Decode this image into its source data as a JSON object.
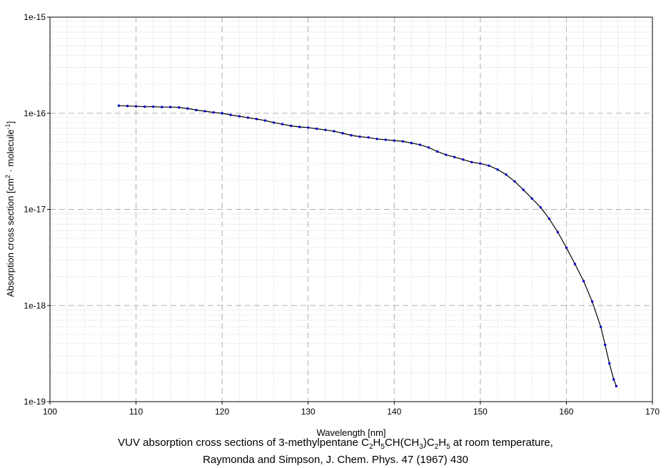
{
  "chart_data": {
    "type": "line",
    "title": "",
    "xlabel": "Wavelength [nm]",
    "ylabel": {
      "prefix": "Absorption cross section [cm",
      "sup1": "2",
      "middle": " · molecule",
      "sup2": "-1",
      "suffix": "]"
    },
    "x_scale": "linear",
    "y_scale": "log",
    "xlim": [
      100,
      170
    ],
    "ylim": [
      1e-19,
      1e-15
    ],
    "x_ticks": [
      "100",
      "110",
      "120",
      "130",
      "140",
      "150",
      "160",
      "170"
    ],
    "y_ticks": [
      "1e-15",
      "1e-16",
      "1e-17",
      "1e-18",
      "1e-19"
    ],
    "grid": true,
    "legend": "none",
    "line_color": "#000000",
    "marker_color": "#0000cc",
    "series": [
      {
        "x": [
          108.0,
          109.0,
          110.0,
          111.0,
          112.0,
          113.0,
          114.0,
          115.0,
          116.0,
          117.0,
          118.0,
          119.0,
          120.0,
          121.0,
          122.0,
          123.0,
          124.0,
          125.0,
          126.0,
          127.0,
          128.0,
          129.0,
          130.0,
          131.0,
          132.0,
          133.0,
          134.0,
          135.0,
          136.0,
          137.0,
          138.0,
          139.0,
          140.0,
          141.0,
          142.0,
          143.0,
          144.0,
          145.0,
          146.0,
          147.0,
          148.0,
          149.0,
          150.0,
          151.0,
          152.0,
          153.0,
          154.0,
          155.0,
          156.0,
          157.0,
          158.0,
          159.0,
          160.0,
          161.0,
          162.0,
          163.0,
          164.0,
          164.5,
          165.0,
          165.5,
          165.8
        ],
        "y": [
          1.2e-16,
          1.19e-16,
          1.18e-16,
          1.17e-16,
          1.17e-16,
          1.16e-16,
          1.16e-16,
          1.15e-16,
          1.12e-16,
          1.08e-16,
          1.05e-16,
          1.02e-16,
          1e-16,
          9.6e-17,
          9.3e-17,
          9e-17,
          8.7e-17,
          8.4e-17,
          8e-17,
          7.7e-17,
          7.4e-17,
          7.2e-17,
          7.1e-17,
          6.9e-17,
          6.7e-17,
          6.5e-17,
          6.2e-17,
          5.9e-17,
          5.7e-17,
          5.6e-17,
          5.4e-17,
          5.3e-17,
          5.2e-17,
          5.1e-17,
          4.9e-17,
          4.7e-17,
          4.4e-17,
          4e-17,
          3.7e-17,
          3.5e-17,
          3.3e-17,
          3.1e-17,
          3e-17,
          2.85e-17,
          2.6e-17,
          2.3e-17,
          1.95e-17,
          1.6e-17,
          1.3e-17,
          1.05e-17,
          8e-18,
          5.8e-18,
          4e-18,
          2.7e-18,
          1.8e-18,
          1.1e-18,
          6e-19,
          3.9e-19,
          2.5e-19,
          1.7e-19,
          1.45e-19
        ]
      }
    ],
    "caption": {
      "line1": {
        "pre": "VUV absorption cross sections of 3-methylpentane C",
        "s1": "2",
        "t1": "H",
        "s2": "5",
        "t2": "CH(CH",
        "s3": "3",
        "t3": ")C",
        "s4": "2",
        "t4": "H",
        "s5": "5",
        "post": " at room temperature,"
      },
      "line2": "Raymonda and Simpson, J. Chem. Phys. 47 (1967) 430"
    }
  }
}
